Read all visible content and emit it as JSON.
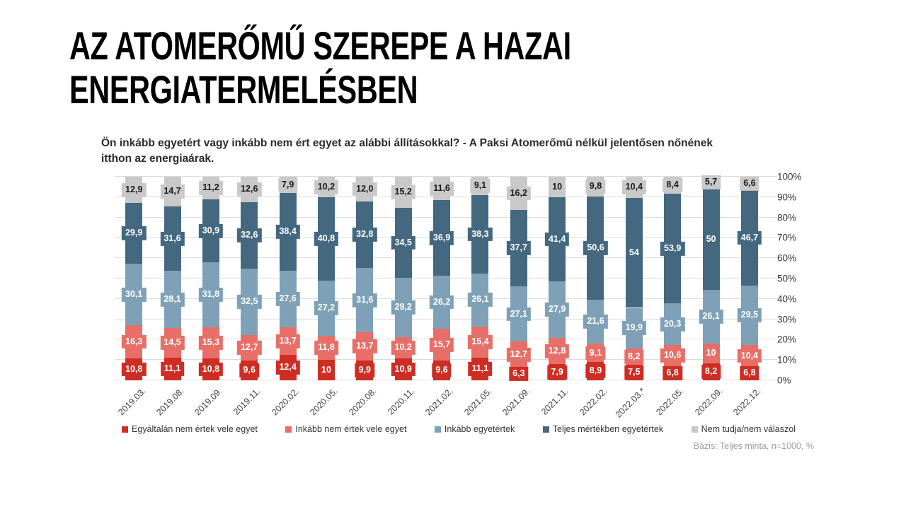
{
  "slide": {
    "title": "AZ ATOMERŐMŰ SZEREPE A HAZAI\nENERGIATERMELÉSBEN"
  },
  "chart_data": {
    "type": "bar",
    "stacked": true,
    "orientation": "vertical",
    "title": "Ön inkább egyetért vagy inkább nem ért egyet az alábbi állításokkal? - A Paksi Atomerőmű nélkül jelentősen nőnének\nitthon az energiaárak.",
    "categories": [
      "2019.03.",
      "2019.08.",
      "2019.09.",
      "2019.11.",
      "2020.02.",
      "2020.05.",
      "2020.08.",
      "2020.11.",
      "2021.02.",
      "2021.05.",
      "2021.09.",
      "2021.11.",
      "2022.02.",
      "2022.03.*",
      "2022.05.",
      "2022.09.",
      "2022.12."
    ],
    "series": [
      {
        "name": "Egyáltalán nem értek vele egyet",
        "color": "#ce2d23",
        "label_color": "#ffffff",
        "values": [
          10.8,
          11.1,
          10.8,
          9.6,
          12.4,
          10,
          9.9,
          10.9,
          9.6,
          11.1,
          6.3,
          7.9,
          8.9,
          7.5,
          6.8,
          8.2,
          6.8
        ],
        "labels": [
          "10,8",
          "11,1",
          "10,8",
          "9,6",
          "12,4",
          "10",
          "9,9",
          "10,9",
          "9,6",
          "11,1",
          "6,3",
          "7,9",
          "8,9",
          "7,5",
          "6,8",
          "8,2",
          "6,8"
        ]
      },
      {
        "name": "Inkább nem értek vele egyet",
        "color": "#e76f68",
        "label_color": "#ffffff",
        "values": [
          16.3,
          14.5,
          15.3,
          12.7,
          13.7,
          11.8,
          13.7,
          10.2,
          15.7,
          15.4,
          12.7,
          12.8,
          9.1,
          8.2,
          10.6,
          10,
          10.4
        ],
        "labels": [
          "16,3",
          "14,5",
          "15,3",
          "12,7",
          "13,7",
          "11,8",
          "13,7",
          "10,2",
          "15,7",
          "15,4",
          "12,7",
          "12,8",
          "9,1",
          "8,2",
          "10,6",
          "10",
          "10,4"
        ]
      },
      {
        "name": "Inkább egyetértek",
        "color": "#7ea1b7",
        "label_color": "#ffffff",
        "values": [
          30.1,
          28.1,
          31.8,
          32.5,
          27.6,
          27.2,
          31.6,
          29.2,
          26.2,
          26.1,
          27.1,
          27.9,
          21.6,
          19.9,
          20.3,
          26.1,
          29.5
        ],
        "labels": [
          "30,1",
          "28,1",
          "31,8",
          "32,5",
          "27,6",
          "27,2",
          "31,6",
          "29,2",
          "26,2",
          "26,1",
          "27,1",
          "27,9",
          "21,6",
          "19,9",
          "20,3",
          "26,1",
          "29,5"
        ]
      },
      {
        "name": "Teljes mértékben egyetértek",
        "color": "#44687f",
        "label_color": "#ffffff",
        "values": [
          29.9,
          31.6,
          30.9,
          32.6,
          38.4,
          40.8,
          32.8,
          34.5,
          36.9,
          38.3,
          37.7,
          41.4,
          50.6,
          54,
          53.9,
          50,
          46.7
        ],
        "labels": [
          "29,9",
          "31,6",
          "30,9",
          "32,6",
          "38,4",
          "40,8",
          "32,8",
          "34,5",
          "36,9",
          "38,3",
          "37,7",
          "41,4",
          "50,6",
          "54",
          "53,9",
          "50",
          "46,7"
        ]
      },
      {
        "name": "Nem tudja/nem válaszol",
        "color": "#c9c9c9",
        "label_color": "#1a1a1a",
        "values": [
          12.9,
          14.7,
          11.2,
          12.6,
          7.9,
          10.2,
          12.0,
          15.2,
          11.6,
          9.1,
          16.2,
          10,
          9.8,
          10.4,
          8.4,
          5.7,
          6.6
        ],
        "labels": [
          "12,9",
          "14,7",
          "11,2",
          "12,6",
          "7,9",
          "10,2",
          "12,0",
          "15,2",
          "11,6",
          "9,1",
          "16,2",
          "10",
          "9,8",
          "10,4",
          "8,4",
          "5,7",
          "6,6"
        ]
      }
    ],
    "y_axis": {
      "position": "right",
      "min": 0,
      "max": 100,
      "grid": true,
      "ticks_top_to_bottom": [
        "100%",
        "90%",
        "80%",
        "70%",
        "60%",
        "50%",
        "40%",
        "30%",
        "20%",
        "10%",
        "0%"
      ]
    },
    "legend_position": "bottom",
    "footnote": "Bázis: Teljes minta, n=1000, %"
  }
}
